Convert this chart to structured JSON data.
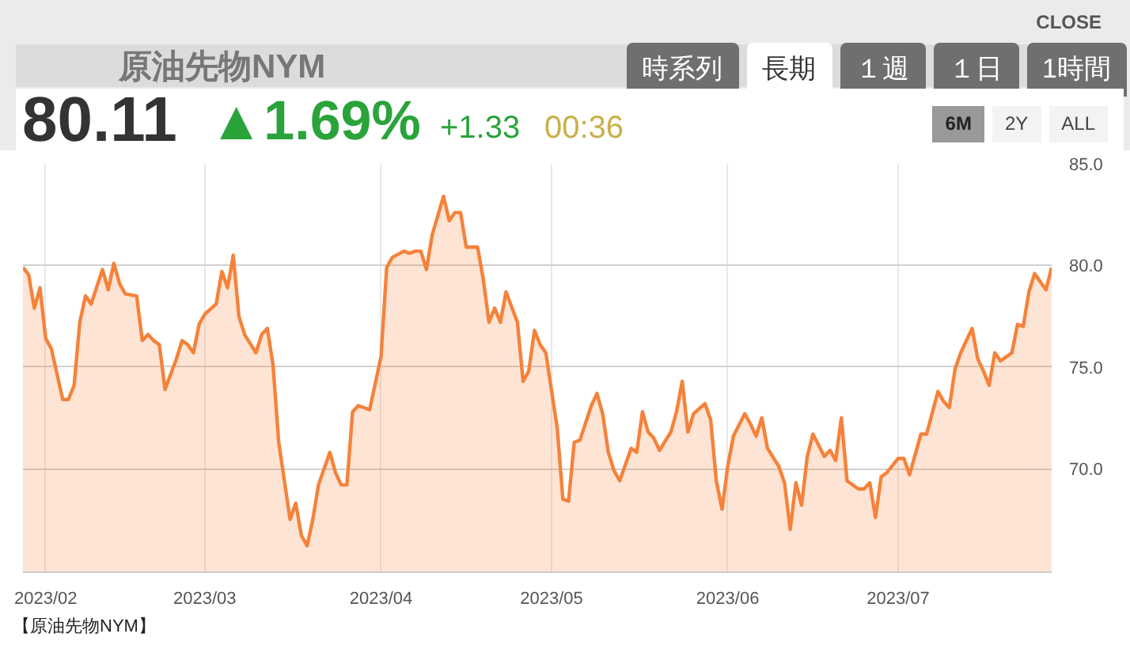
{
  "chart_data": {
    "type": "area",
    "title": "原油先物NYM",
    "annotations": [
      "CLOSE",
      "時系列",
      "長期",
      "１週",
      "１日",
      "1時間",
      "80.11",
      "▲1.69%",
      "+1.33",
      "00:36",
      "6M",
      "2Y",
      "ALL",
      "【原油先物NYM】"
    ],
    "x": [
      "2023-01-28",
      "2023-01-29",
      "2023-01-30",
      "2023-01-31",
      "2023-02-01",
      "2023-02-02",
      "2023-02-04",
      "2023-02-05",
      "2023-02-06",
      "2023-02-07",
      "2023-02-08",
      "2023-02-09",
      "2023-02-11",
      "2023-02-12",
      "2023-02-13",
      "2023-02-14",
      "2023-02-15",
      "2023-02-17",
      "2023-02-18",
      "2023-02-19",
      "2023-02-20",
      "2023-02-21",
      "2023-02-22",
      "2023-02-24",
      "2023-02-25",
      "2023-02-26",
      "2023-02-27",
      "2023-02-28",
      "2023-03-01",
      "2023-03-03",
      "2023-03-04",
      "2023-03-05",
      "2023-03-06",
      "2023-03-07",
      "2023-03-08",
      "2023-03-10",
      "2023-03-11",
      "2023-03-12",
      "2023-03-13",
      "2023-03-14",
      "2023-03-16",
      "2023-03-17",
      "2023-03-18",
      "2023-03-19",
      "2023-03-20",
      "2023-03-21",
      "2023-03-23",
      "2023-03-24",
      "2023-03-25",
      "2023-03-26",
      "2023-03-27",
      "2023-03-28",
      "2023-03-30",
      "2023-03-31",
      "2023-04-01",
      "2023-04-02",
      "2023-04-03",
      "2023-04-05",
      "2023-04-06",
      "2023-04-07",
      "2023-04-08",
      "2023-04-09",
      "2023-04-10",
      "2023-04-12",
      "2023-04-13",
      "2023-04-14",
      "2023-04-15",
      "2023-04-16",
      "2023-04-18",
      "2023-04-19",
      "2023-04-20",
      "2023-04-21",
      "2023-04-22",
      "2023-04-23",
      "2023-04-25",
      "2023-04-26",
      "2023-04-27",
      "2023-04-28",
      "2023-04-29",
      "2023-04-30",
      "2023-05-02",
      "2023-05-03",
      "2023-05-04",
      "2023-05-05",
      "2023-05-06",
      "2023-05-08",
      "2023-05-09",
      "2023-05-10",
      "2023-05-11",
      "2023-05-12",
      "2023-05-13",
      "2023-05-15",
      "2023-05-16",
      "2023-05-17",
      "2023-05-18",
      "2023-05-19",
      "2023-05-20",
      "2023-05-22",
      "2023-05-23",
      "2023-05-24",
      "2023-05-25",
      "2023-05-26",
      "2023-05-28",
      "2023-05-29",
      "2023-05-30",
      "2023-05-31",
      "2023-06-01",
      "2023-06-02",
      "2023-06-04",
      "2023-06-05",
      "2023-06-06",
      "2023-06-07",
      "2023-06-08",
      "2023-06-10",
      "2023-06-11",
      "2023-06-12",
      "2023-06-13",
      "2023-06-14",
      "2023-06-15",
      "2023-06-16",
      "2023-06-18",
      "2023-06-19",
      "2023-06-20",
      "2023-06-21",
      "2023-06-22",
      "2023-06-24",
      "2023-06-25",
      "2023-06-26",
      "2023-06-27",
      "2023-06-28",
      "2023-06-29",
      "2023-07-01",
      "2023-07-02",
      "2023-07-03",
      "2023-07-04",
      "2023-07-05",
      "2023-07-06",
      "2023-07-08",
      "2023-07-09",
      "2023-07-10",
      "2023-07-11",
      "2023-07-12",
      "2023-07-14",
      "2023-07-15",
      "2023-07-16",
      "2023-07-17",
      "2023-07-18",
      "2023-07-19",
      "2023-07-21",
      "2023-07-22",
      "2023-07-23",
      "2023-07-24",
      "2023-07-25",
      "2023-07-27",
      "2023-07-28"
    ],
    "series": [
      {
        "color": "#f5823a",
        "values": [
          79.9,
          79.55,
          77.9,
          78.9,
          76.4,
          75.9,
          73.4,
          73.4,
          74.1,
          77.2,
          78.5,
          78.1,
          79.8,
          78.8,
          80.1,
          79.1,
          78.6,
          78.5,
          76.3,
          76.6,
          76.3,
          76.1,
          73.9,
          75.4,
          76.3,
          76.1,
          75.7,
          77.1,
          77.6,
          78.1,
          79.7,
          78.9,
          80.5,
          77.5,
          76.6,
          75.7,
          76.6,
          76.9,
          75.1,
          71.3,
          67.5,
          68.3,
          66.7,
          66.2,
          67.5,
          69.2,
          70.8,
          69.8,
          69.2,
          69.2,
          72.8,
          73.1,
          72.9,
          74.2,
          75.5,
          79.9,
          80.4,
          80.7,
          80.6,
          80.7,
          80.7,
          79.8,
          81.5,
          83.4,
          82.2,
          82.6,
          82.6,
          80.9,
          80.9,
          79.3,
          77.2,
          77.9,
          77.2,
          78.7,
          77.2,
          74.3,
          74.8,
          76.8,
          76.1,
          75.7,
          72.0,
          68.5,
          68.4,
          71.3,
          71.4,
          73.1,
          73.7,
          72.7,
          70.8,
          69.9,
          69.4,
          71.0,
          70.8,
          72.8,
          71.8,
          71.5,
          70.9,
          71.8,
          72.8,
          74.3,
          71.8,
          72.7,
          73.2,
          72.4,
          69.4,
          68.0,
          70.1,
          71.6,
          72.7,
          72.2,
          71.6,
          72.5,
          71.0,
          70.1,
          69.3,
          67.0,
          69.3,
          68.2,
          70.6,
          71.7,
          70.6,
          70.9,
          70.4,
          72.5,
          69.4,
          69.0,
          69.0,
          69.3,
          67.6,
          69.6,
          69.8,
          70.5,
          70.5,
          69.7,
          70.7,
          71.7,
          71.7,
          73.8,
          73.3,
          73.0,
          74.9,
          75.7,
          76.9,
          75.4,
          74.8,
          74.1,
          75.7,
          75.3,
          75.7,
          77.1,
          77.0,
          78.7,
          79.6,
          78.8,
          79.9
        ]
      }
    ],
    "xlim": [
      "2023-01-28",
      "2023-07-28"
    ],
    "xticks": [
      {
        "value": "2023-02-01",
        "label": "2023/02"
      },
      {
        "value": "2023-03-01",
        "label": "2023/03"
      },
      {
        "value": "2023-04-01",
        "label": "2023/04"
      },
      {
        "value": "2023-05-01",
        "label": "2023/05"
      },
      {
        "value": "2023-06-01",
        "label": "2023/06"
      },
      {
        "value": "2023-07-01",
        "label": "2023/07"
      }
    ],
    "ylim": [
      64.9,
      85
    ],
    "yticks": [
      {
        "value": 70,
        "label": "70.0"
      },
      {
        "value": 75,
        "label": "75.0"
      },
      {
        "value": 80,
        "label": "80.0"
      },
      {
        "value": 85,
        "label": "85.0"
      }
    ],
    "grid": true
  }
}
